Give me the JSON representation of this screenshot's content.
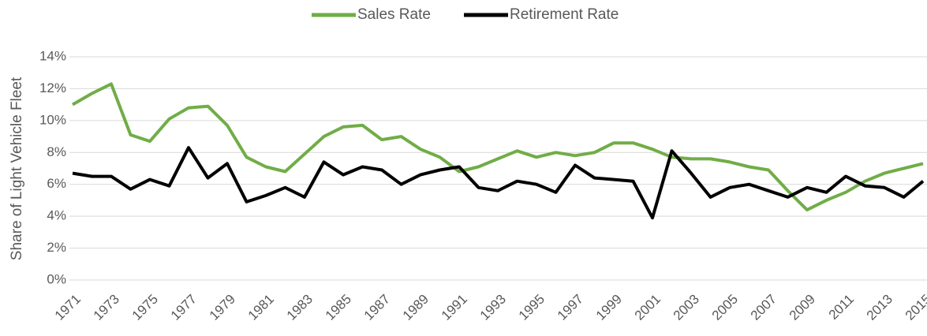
{
  "chart_data": {
    "type": "line",
    "y_axis_label": "Share of Light Vehicle Fleet",
    "categories": [
      "1971",
      null,
      "1973",
      null,
      "1975",
      null,
      "1977",
      null,
      "1979",
      null,
      "1981",
      null,
      "1983",
      null,
      "1985",
      null,
      "1987",
      null,
      "1989",
      null,
      "1991",
      null,
      "1993",
      null,
      "1995",
      null,
      "1997",
      null,
      "1999",
      null,
      "2001",
      null,
      "2003",
      null,
      "2005",
      null,
      "2007",
      null,
      "2009",
      null,
      "2011",
      null,
      "2013",
      null,
      "2015"
    ],
    "series": [
      {
        "name": "Sales Rate",
        "color": "#70ad47",
        "values": [
          11.0,
          11.7,
          12.3,
          9.1,
          8.7,
          10.1,
          10.8,
          10.9,
          9.7,
          7.7,
          7.1,
          6.8,
          7.9,
          9.0,
          9.6,
          9.7,
          8.8,
          9.0,
          8.2,
          7.7,
          6.8,
          7.1,
          7.6,
          8.1,
          7.7,
          8.0,
          7.8,
          8.0,
          8.6,
          8.6,
          8.2,
          7.7,
          7.6,
          7.6,
          7.4,
          7.1,
          6.9,
          5.6,
          4.4,
          5.0,
          5.5,
          6.2,
          6.7,
          7.0,
          7.3
        ]
      },
      {
        "name": "Retirement Rate",
        "color": "#000000",
        "values": [
          6.7,
          6.5,
          6.5,
          5.7,
          6.3,
          5.9,
          8.3,
          6.4,
          7.3,
          4.9,
          5.3,
          5.8,
          5.2,
          7.4,
          6.6,
          7.1,
          6.9,
          6.0,
          6.6,
          6.9,
          7.1,
          5.8,
          5.6,
          6.2,
          6.0,
          5.5,
          7.2,
          6.4,
          6.3,
          6.2,
          3.9,
          8.1,
          6.7,
          5.2,
          5.8,
          6.0,
          5.6,
          5.2,
          5.8,
          5.5,
          6.5,
          5.9,
          5.8,
          5.2,
          6.2
        ]
      }
    ],
    "ylim": [
      0,
      14
    ],
    "yticks": [
      {
        "value": 0,
        "label": "0%"
      },
      {
        "value": 2,
        "label": "2%"
      },
      {
        "value": 4,
        "label": "4%"
      },
      {
        "value": 6,
        "label": "6%"
      },
      {
        "value": 8,
        "label": "8%"
      },
      {
        "value": 10,
        "label": "10%"
      },
      {
        "value": 12,
        "label": "12%"
      },
      {
        "value": 14,
        "label": "14%"
      }
    ],
    "grid": true,
    "legend": "top"
  }
}
